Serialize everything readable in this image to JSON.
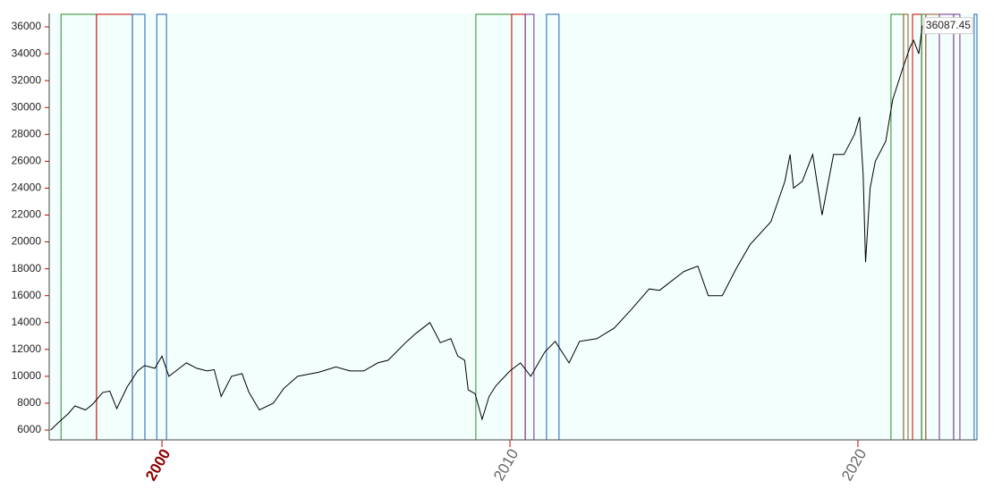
{
  "chart_data": {
    "type": "line",
    "xlim": [
      1996.76,
      2023.42
    ],
    "ylim": [
      5270,
      37000
    ],
    "yticks": [
      6000,
      8000,
      10000,
      12000,
      14000,
      16000,
      18000,
      20000,
      22000,
      24000,
      26000,
      28000,
      30000,
      32000,
      34000,
      36000
    ],
    "xticks": [
      2000,
      2010,
      2020
    ],
    "xtick_colors": [
      "#8b0000",
      "#666666",
      "#666666"
    ],
    "background": "#f3fffd",
    "series": [
      {
        "color": "#000000",
        "x": [
          1996.8,
          1997.0,
          1997.3,
          1997.5,
          1997.8,
          1998.0,
          1998.3,
          1998.5,
          1998.7,
          1999.0,
          1999.3,
          1999.5,
          1999.8,
          2000.0,
          2000.2,
          2000.5,
          2000.7,
          2001.0,
          2001.3,
          2001.5,
          2001.7,
          2002.0,
          2002.3,
          2002.5,
          2002.8,
          2003.2,
          2003.5,
          2003.9,
          2004.5,
          2005.0,
          2005.4,
          2005.8,
          2006.2,
          2006.5,
          2007.0,
          2007.3,
          2007.7,
          2008.0,
          2008.3,
          2008.5,
          2008.7,
          2008.8,
          2009.0,
          2009.2,
          2009.4,
          2009.6,
          2010.0,
          2010.3,
          2010.6,
          2011.0,
          2011.3,
          2011.7,
          2012.0,
          2012.5,
          2013.0,
          2013.5,
          2014.0,
          2014.3,
          2014.5,
          2015.0,
          2015.4,
          2015.7,
          2016.1,
          2016.5,
          2016.9,
          2017.5,
          2017.9,
          2018.05,
          2018.15,
          2018.4,
          2018.7,
          2018.97,
          2019.3,
          2019.6,
          2019.9,
          2020.05,
          2020.15,
          2020.22,
          2020.35,
          2020.5,
          2020.8,
          2021.0,
          2021.3,
          2021.5,
          2021.6,
          2021.75,
          2021.85
        ],
        "values": [
          6000,
          6500,
          7200,
          7800,
          7500,
          7900,
          8800,
          8900,
          7600,
          9200,
          10400,
          10800,
          10600,
          11500,
          10000,
          10600,
          11000,
          10600,
          10400,
          10500,
          8500,
          10000,
          10200,
          8800,
          7500,
          8000,
          9100,
          10000,
          10300,
          10700,
          10400,
          10400,
          11000,
          11200,
          12500,
          13200,
          14000,
          12500,
          12800,
          11500,
          11200,
          9000,
          8700,
          6800,
          8500,
          9300,
          10400,
          11000,
          10000,
          11800,
          12600,
          11000,
          12600,
          12800,
          13600,
          15000,
          16500,
          16400,
          16800,
          17800,
          18200,
          16000,
          16000,
          18000,
          19800,
          21500,
          24500,
          26500,
          24000,
          24500,
          26500,
          22000,
          26500,
          26500,
          28000,
          29300,
          25000,
          18500,
          24000,
          26000,
          27500,
          30600,
          33000,
          34500,
          35000,
          34000,
          36087.45
        ]
      }
    ],
    "bands": [
      {
        "color": "#2e8b2e",
        "x": [
          1997.1,
          1998.12
        ]
      },
      {
        "color": "#cc0000",
        "x": [
          1998.12,
          1999.15
        ]
      },
      {
        "color": "#2060b0",
        "x": [
          1999.15,
          1999.51
        ]
      },
      {
        "color": "#2060b0",
        "x": [
          1999.85,
          2000.13
        ]
      },
      {
        "color": "#2e8b2e",
        "x": [
          2009.02,
          2010.05
        ]
      },
      {
        "color": "#cc0000",
        "x": [
          2010.05,
          2010.44
        ]
      },
      {
        "color": "#7b2c8b",
        "x": [
          2010.44,
          2010.69
        ]
      },
      {
        "color": "#2060b0",
        "x": [
          2011.05,
          2011.41
        ]
      },
      {
        "color": "#2e8b2e",
        "x": [
          2020.95,
          2021.31
        ]
      },
      {
        "color": "#a0522d",
        "x": [
          2021.31,
          2021.44
        ]
      },
      {
        "color": "#cc0000",
        "x": [
          2021.57,
          2021.83
        ]
      },
      {
        "color": "#2e8b2e",
        "x": [
          2021.83,
          2021.95
        ]
      },
      {
        "color": "#a0522d",
        "x": [
          2021.95,
          2022.34
        ]
      },
      {
        "color": "#7b2c8b",
        "x": [
          2022.34,
          2022.75
        ]
      },
      {
        "color": "#7b2c8b",
        "x": [
          2022.75,
          2022.93
        ]
      },
      {
        "color": "#2060b0",
        "x": [
          2023.34,
          2023.42
        ]
      }
    ]
  }
}
